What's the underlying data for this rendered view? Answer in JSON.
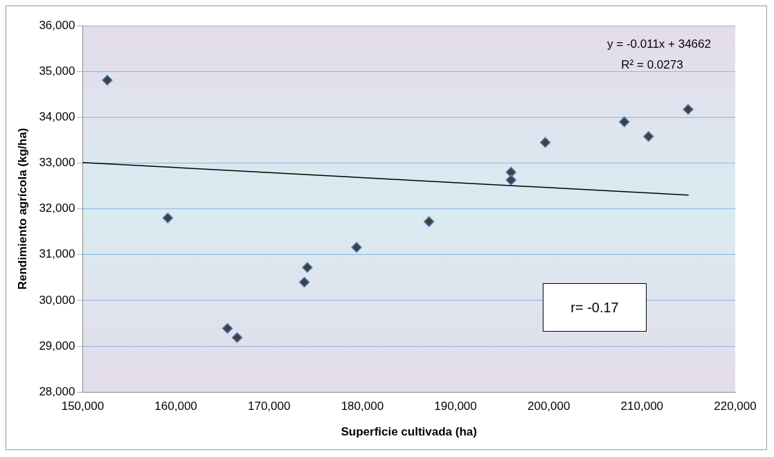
{
  "chart_data": {
    "type": "scatter",
    "xlabel": "Superficie cultivada (ha)",
    "ylabel": "Rendimiento agrícola (kg/ha)",
    "series": [
      {
        "color": "#404040",
        "marker": "diamond",
        "x": [
          152640,
          159130,
          165530,
          166570,
          173780,
          174100,
          179380,
          187150,
          195950,
          195950,
          199620,
          208100,
          210700,
          214950
        ],
        "values": [
          34810,
          31800,
          29390,
          29190,
          30400,
          30720,
          31160,
          31720,
          32800,
          32630,
          33450,
          33900,
          33580,
          34170
        ]
      },
      {
        "type": "line",
        "color": "#000000",
        "marker": "none",
        "x": [
          150000,
          215000
        ],
        "values": [
          33010,
          32300
        ]
      }
    ],
    "grid": "y",
    "legend": false,
    "xlim": [
      150000,
      220000
    ],
    "xticks": [
      {
        "value": 150000,
        "label": "150,000"
      },
      {
        "value": 160000,
        "label": "160,000"
      },
      {
        "value": 170000,
        "label": "170,000"
      },
      {
        "value": 180000,
        "label": "180,000"
      },
      {
        "value": 190000,
        "label": "190,000"
      },
      {
        "value": 200000,
        "label": "200,000"
      },
      {
        "value": 210000,
        "label": "210,000"
      },
      {
        "value": 220000,
        "label": "220,000"
      }
    ],
    "ylim": [
      28000,
      36000
    ],
    "yticks": [
      {
        "value": 28000,
        "label": "28,000"
      },
      {
        "value": 29000,
        "label": "29,000"
      },
      {
        "value": 30000,
        "label": "30,000"
      },
      {
        "value": 31000,
        "label": "31,000"
      },
      {
        "value": 32000,
        "label": "32,000"
      },
      {
        "value": 33000,
        "label": "33,000"
      },
      {
        "value": 34000,
        "label": "34,000"
      },
      {
        "value": 35000,
        "label": "35,000"
      },
      {
        "value": 36000,
        "label": "36,000"
      }
    ],
    "annotations": [
      "y = -0.011x + 34662",
      "R² = 0.0273",
      "r= -0.17"
    ]
  }
}
